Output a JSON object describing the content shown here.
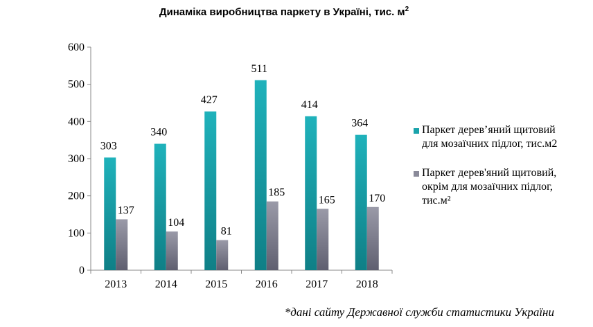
{
  "chart_data": {
    "type": "bar",
    "title": "Динаміка виробництва паркету в Україні, тис. м²",
    "categories": [
      "2013",
      "2014",
      "2015",
      "2016",
      "2017",
      "2018"
    ],
    "series": [
      {
        "name": "Паркет дерев’яний щитовий\nдля мозаїчних підлог, тис.м2",
        "values": [
          303,
          340,
          427,
          511,
          414,
          364
        ],
        "color": "#1aa3ab"
      },
      {
        "name": "Паркет дерев'яний щитовий,\nокрім для мозаїчних підлог,\nтис.м²",
        "values": [
          137,
          104,
          81,
          185,
          165,
          170
        ],
        "color": "#8a8a99"
      }
    ],
    "ylim": [
      0,
      600
    ],
    "yticks": [
      0,
      100,
      200,
      300,
      400,
      500,
      600
    ],
    "grid": false,
    "legend_position": "right"
  },
  "footnote": "*дані сайту Державної служби статистики України"
}
